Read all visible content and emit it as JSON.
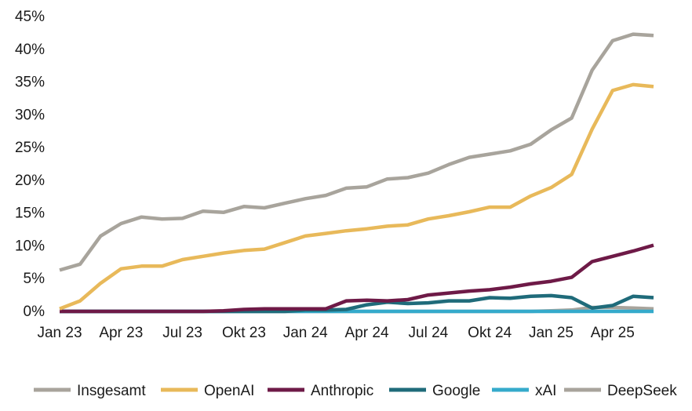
{
  "chart_data": {
    "type": "line",
    "title": "",
    "xlabel": "",
    "ylabel": "",
    "ylim": [
      0,
      45
    ],
    "grid": false,
    "legend_position": "bottom",
    "y_ticks": [
      0,
      5,
      10,
      15,
      20,
      25,
      30,
      35,
      40,
      45
    ],
    "y_tick_labels": [
      "0%",
      "5%",
      "10%",
      "15%",
      "20%",
      "25%",
      "30%",
      "35%",
      "40%",
      "45%"
    ],
    "x_tick_labels": [
      "Jan 23",
      "Apr 23",
      "Jul 23",
      "Okt 23",
      "Jan 24",
      "Apr 24",
      "Jul 24",
      "Okt 24",
      "Jan 25",
      "Apr 25"
    ],
    "x_tick_index": [
      0,
      3,
      6,
      9,
      12,
      15,
      18,
      21,
      24,
      27
    ],
    "x": [
      "Jan 23",
      "Feb 23",
      "Mär 23",
      "Apr 23",
      "Mai 23",
      "Jun 23",
      "Jul 23",
      "Aug 23",
      "Sep 23",
      "Okt 23",
      "Nov 23",
      "Dez 23",
      "Jan 24",
      "Feb 24",
      "Mär 24",
      "Apr 24",
      "Mai 24",
      "Jun 24",
      "Jul 24",
      "Aug 24",
      "Sep 24",
      "Okt 24",
      "Nov 24",
      "Dez 24",
      "Jan 25",
      "Feb 25",
      "Mär 25",
      "Apr 25",
      "Mai 25",
      "Jun 25"
    ],
    "series": [
      {
        "name": "Insgesamt",
        "color": "#a8a49c",
        "values": [
          6.3,
          7.2,
          11.5,
          13.4,
          14.4,
          14.1,
          14.2,
          15.3,
          15.1,
          16.0,
          15.8,
          16.5,
          17.2,
          17.7,
          18.8,
          19.0,
          20.2,
          20.4,
          21.1,
          22.4,
          23.5,
          24.0,
          24.5,
          25.5,
          27.7,
          29.5,
          36.8,
          41.3,
          42.3,
          42.1
        ]
      },
      {
        "name": "OpenAI",
        "color": "#e8b95a",
        "values": [
          0.4,
          1.6,
          4.3,
          6.5,
          6.9,
          6.9,
          7.9,
          8.4,
          8.9,
          9.3,
          9.5,
          10.5,
          11.5,
          11.9,
          12.3,
          12.6,
          13.0,
          13.2,
          14.1,
          14.6,
          15.2,
          15.9,
          15.9,
          17.6,
          18.9,
          20.9,
          27.8,
          33.7,
          34.6,
          34.3
        ]
      },
      {
        "name": "Anthropic",
        "color": "#6e1a47",
        "values": [
          0,
          0,
          0,
          0,
          0,
          0,
          0,
          0,
          0.1,
          0.3,
          0.4,
          0.4,
          0.4,
          0.4,
          1.6,
          1.7,
          1.6,
          1.8,
          2.5,
          2.8,
          3.1,
          3.3,
          3.7,
          4.2,
          4.6,
          5.2,
          7.6,
          8.4,
          9.2,
          10.1
        ]
      },
      {
        "name": "Google",
        "color": "#1f6b7a",
        "values": [
          0,
          0,
          0,
          0,
          0,
          0,
          0,
          0,
          0,
          0,
          0,
          0,
          0.2,
          0.2,
          0.3,
          1.0,
          1.4,
          1.2,
          1.3,
          1.6,
          1.6,
          2.1,
          2.0,
          2.3,
          2.4,
          2.1,
          0.5,
          0.9,
          2.3,
          2.1
        ]
      },
      {
        "name": "xAI",
        "color": "#35aacb",
        "values": [
          0,
          0,
          0,
          0,
          0,
          0,
          0,
          0,
          0,
          0,
          0,
          0,
          0,
          0,
          0,
          0,
          0,
          0,
          0,
          0,
          0,
          0,
          0,
          0,
          0,
          0,
          0,
          0,
          0,
          0
        ]
      },
      {
        "name": "DeepSeek",
        "color": "#a8a49c",
        "values": [
          0,
          0,
          0,
          0,
          0,
          0,
          0,
          0,
          0,
          0,
          0,
          0,
          0,
          0,
          0,
          0,
          0,
          0,
          0,
          0,
          0,
          0,
          0,
          0,
          0.1,
          0.2,
          0.6,
          0.6,
          0.5,
          0.4
        ]
      }
    ]
  }
}
